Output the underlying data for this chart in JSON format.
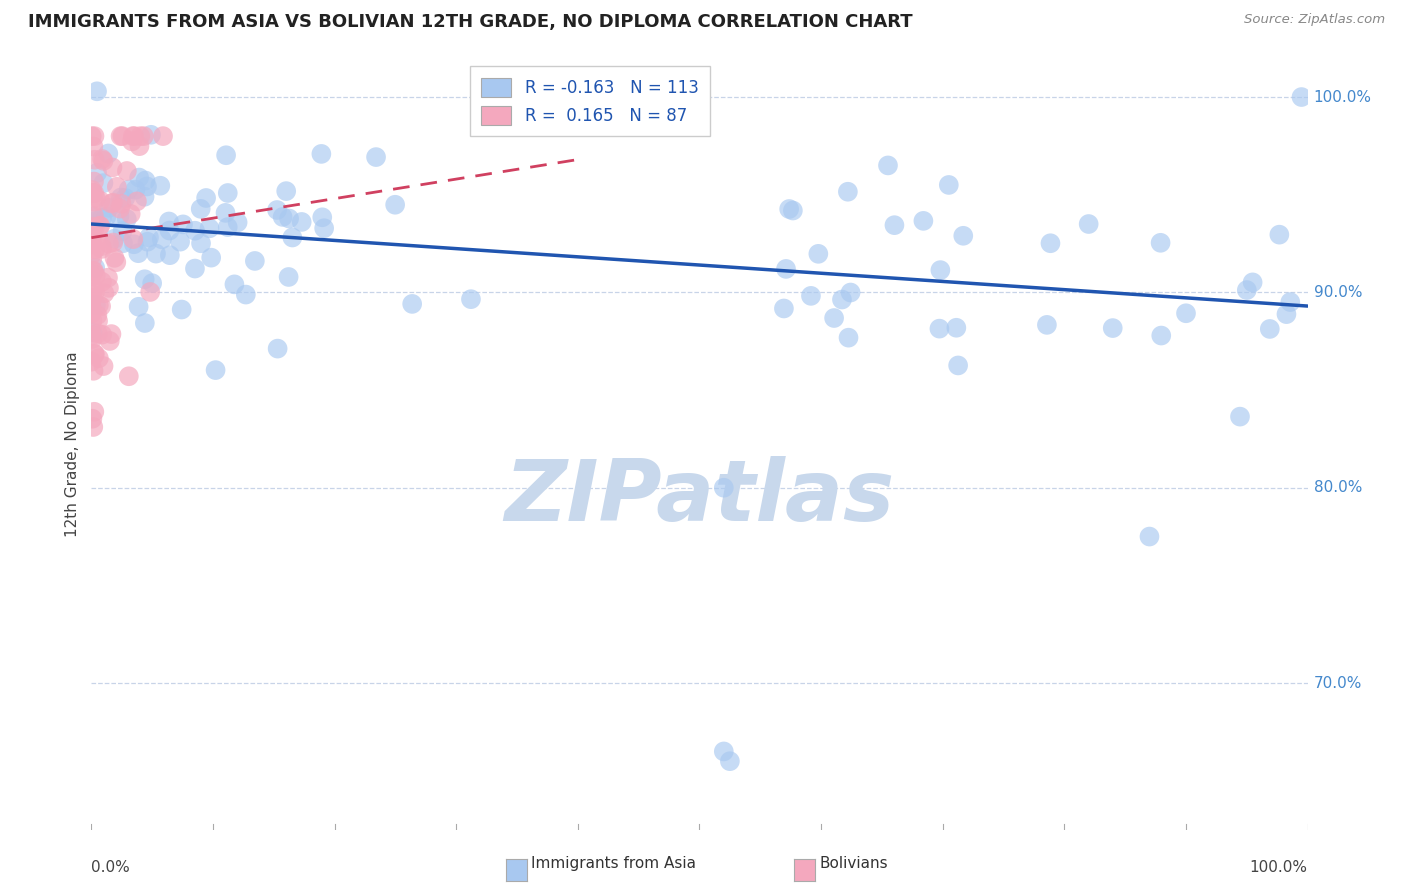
{
  "title": "IMMIGRANTS FROM ASIA VS BOLIVIAN 12TH GRADE, NO DIPLOMA CORRELATION CHART",
  "source": "Source: ZipAtlas.com",
  "ylabel": "12th Grade, No Diploma",
  "legend_blue_r": "-0.163",
  "legend_blue_n": "113",
  "legend_pink_r": "0.165",
  "legend_pink_n": "87",
  "legend_blue_label": "Immigrants from Asia",
  "legend_pink_label": "Bolivians",
  "blue_color": "#a8c8f0",
  "pink_color": "#f4a8be",
  "trend_blue_color": "#2055b0",
  "trend_pink_color": "#d04060",
  "background_color": "#ffffff",
  "grid_color": "#c8d4e8",
  "watermark_color": "#c8d8ec",
  "ytick_color": "#4488cc",
  "xlabel_color": "#444444",
  "title_color": "#222222",
  "source_color": "#888888",
  "legend_text_color": "#2055b0"
}
